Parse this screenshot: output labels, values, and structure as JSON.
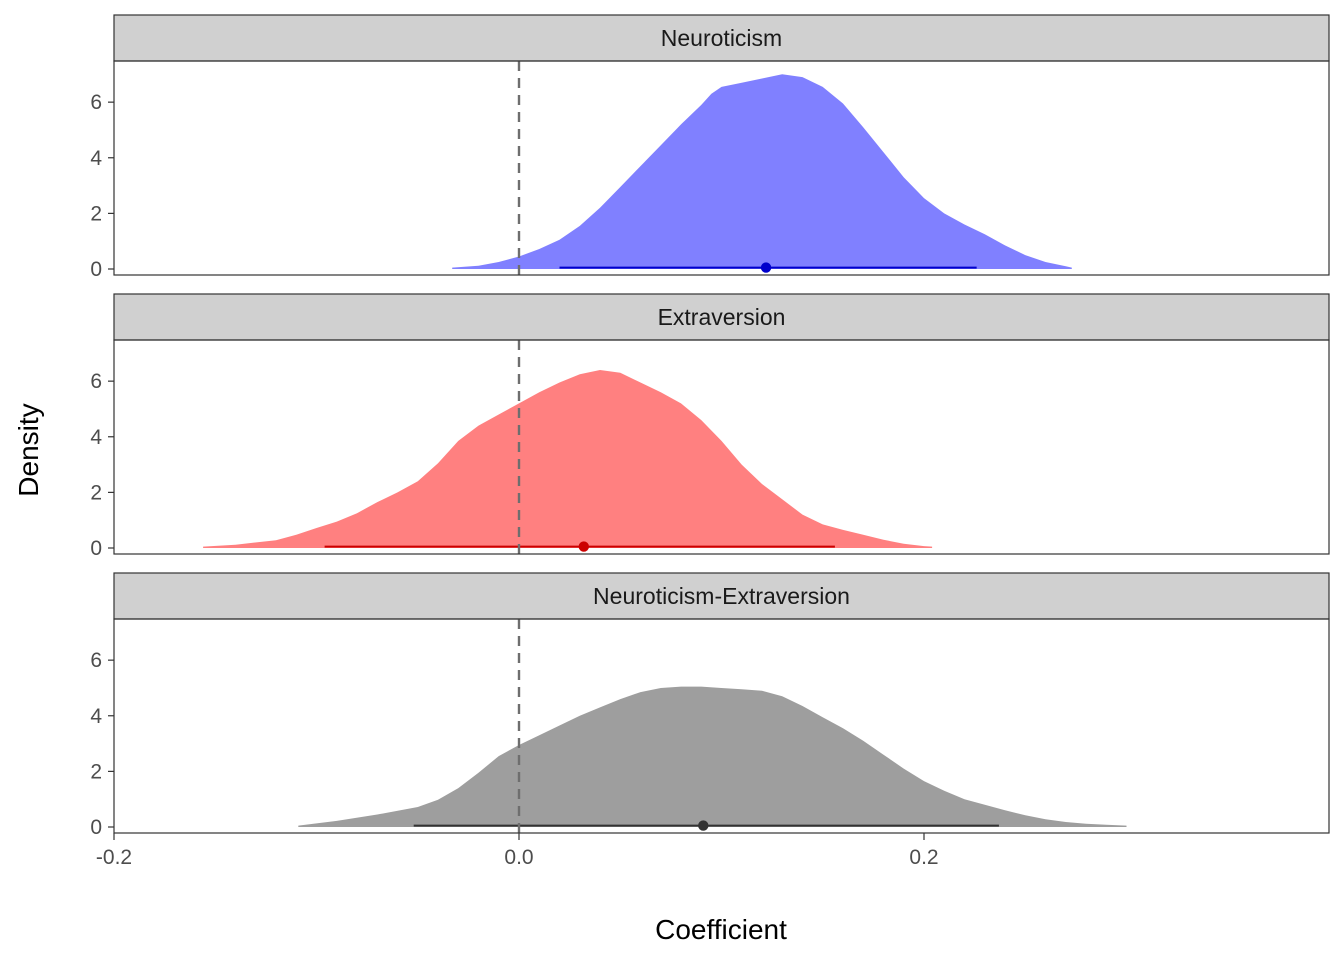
{
  "chart_data": {
    "type": "area",
    "subtype": "faceted-density-with-interval",
    "xlabel": "Coefficient",
    "ylabel": "Density",
    "xlim": [
      -0.2,
      0.4
    ],
    "ylim": [
      0,
      7.3
    ],
    "x_ticks": [
      -0.2,
      0.0,
      0.2
    ],
    "x_tick_labels": [
      "-0.2",
      "0.0",
      "0.2"
    ],
    "y_ticks": [
      0,
      2,
      4,
      6
    ],
    "y_tick_labels": [
      "0",
      "2",
      "4",
      "6"
    ],
    "reference_line": {
      "x": 0.0,
      "style": "dashed"
    },
    "grid": false,
    "legend": "none",
    "facets": [
      {
        "label": "Neuroticism",
        "fill": "#8080ff",
        "interval_color": "#0000cc",
        "point": {
          "x": 0.122,
          "y": 0.05
        },
        "interval": [
          0.02,
          0.226
        ],
        "density": [
          [
            -0.033,
            0.05
          ],
          [
            -0.02,
            0.12
          ],
          [
            -0.01,
            0.25
          ],
          [
            0.0,
            0.45
          ],
          [
            0.01,
            0.72
          ],
          [
            0.02,
            1.05
          ],
          [
            0.03,
            1.55
          ],
          [
            0.04,
            2.2
          ],
          [
            0.05,
            2.95
          ],
          [
            0.06,
            3.7
          ],
          [
            0.07,
            4.45
          ],
          [
            0.08,
            5.2
          ],
          [
            0.09,
            5.9
          ],
          [
            0.095,
            6.3
          ],
          [
            0.1,
            6.55
          ],
          [
            0.11,
            6.7
          ],
          [
            0.12,
            6.85
          ],
          [
            0.13,
            7.0
          ],
          [
            0.14,
            6.9
          ],
          [
            0.15,
            6.55
          ],
          [
            0.16,
            5.95
          ],
          [
            0.17,
            5.1
          ],
          [
            0.18,
            4.2
          ],
          [
            0.19,
            3.3
          ],
          [
            0.2,
            2.55
          ],
          [
            0.21,
            2.0
          ],
          [
            0.22,
            1.6
          ],
          [
            0.23,
            1.25
          ],
          [
            0.24,
            0.85
          ],
          [
            0.25,
            0.5
          ],
          [
            0.26,
            0.25
          ],
          [
            0.27,
            0.1
          ],
          [
            0.273,
            0.05
          ]
        ]
      },
      {
        "label": "Extraversion",
        "fill": "#ff8080",
        "interval_color": "#cc0000",
        "point": {
          "x": 0.032,
          "y": 0.05
        },
        "interval": [
          -0.096,
          0.156
        ],
        "density": [
          [
            -0.156,
            0.05
          ],
          [
            -0.14,
            0.12
          ],
          [
            -0.12,
            0.28
          ],
          [
            -0.11,
            0.48
          ],
          [
            -0.1,
            0.72
          ],
          [
            -0.09,
            0.95
          ],
          [
            -0.08,
            1.25
          ],
          [
            -0.07,
            1.65
          ],
          [
            -0.06,
            2.0
          ],
          [
            -0.05,
            2.4
          ],
          [
            -0.04,
            3.05
          ],
          [
            -0.03,
            3.85
          ],
          [
            -0.02,
            4.4
          ],
          [
            -0.01,
            4.8
          ],
          [
            0.0,
            5.2
          ],
          [
            0.01,
            5.6
          ],
          [
            0.02,
            5.95
          ],
          [
            0.03,
            6.25
          ],
          [
            0.04,
            6.4
          ],
          [
            0.05,
            6.3
          ],
          [
            0.06,
            5.95
          ],
          [
            0.07,
            5.6
          ],
          [
            0.08,
            5.2
          ],
          [
            0.09,
            4.6
          ],
          [
            0.1,
            3.85
          ],
          [
            0.11,
            3.0
          ],
          [
            0.12,
            2.3
          ],
          [
            0.13,
            1.75
          ],
          [
            0.14,
            1.2
          ],
          [
            0.15,
            0.85
          ],
          [
            0.16,
            0.65
          ],
          [
            0.17,
            0.48
          ],
          [
            0.18,
            0.3
          ],
          [
            0.19,
            0.15
          ],
          [
            0.2,
            0.07
          ],
          [
            0.204,
            0.05
          ]
        ]
      },
      {
        "label": "Neuroticism-Extraversion",
        "fill": "#9e9e9e",
        "interval_color": "#333333",
        "point": {
          "x": 0.091,
          "y": 0.05
        },
        "interval": [
          -0.052,
          0.237
        ],
        "density": [
          [
            -0.109,
            0.05
          ],
          [
            -0.09,
            0.22
          ],
          [
            -0.07,
            0.45
          ],
          [
            -0.05,
            0.72
          ],
          [
            -0.04,
            0.98
          ],
          [
            -0.03,
            1.4
          ],
          [
            -0.02,
            1.95
          ],
          [
            -0.01,
            2.55
          ],
          [
            0.0,
            2.95
          ],
          [
            0.01,
            3.3
          ],
          [
            0.02,
            3.65
          ],
          [
            0.03,
            4.0
          ],
          [
            0.04,
            4.3
          ],
          [
            0.05,
            4.6
          ],
          [
            0.06,
            4.85
          ],
          [
            0.07,
            5.0
          ],
          [
            0.08,
            5.05
          ],
          [
            0.09,
            5.05
          ],
          [
            0.1,
            5.0
          ],
          [
            0.11,
            4.95
          ],
          [
            0.12,
            4.9
          ],
          [
            0.13,
            4.7
          ],
          [
            0.14,
            4.35
          ],
          [
            0.15,
            3.95
          ],
          [
            0.16,
            3.55
          ],
          [
            0.17,
            3.1
          ],
          [
            0.18,
            2.6
          ],
          [
            0.19,
            2.1
          ],
          [
            0.2,
            1.65
          ],
          [
            0.21,
            1.3
          ],
          [
            0.22,
            1.0
          ],
          [
            0.23,
            0.8
          ],
          [
            0.24,
            0.6
          ],
          [
            0.25,
            0.42
          ],
          [
            0.26,
            0.28
          ],
          [
            0.27,
            0.18
          ],
          [
            0.28,
            0.12
          ],
          [
            0.29,
            0.08
          ],
          [
            0.3,
            0.05
          ]
        ]
      }
    ]
  }
}
